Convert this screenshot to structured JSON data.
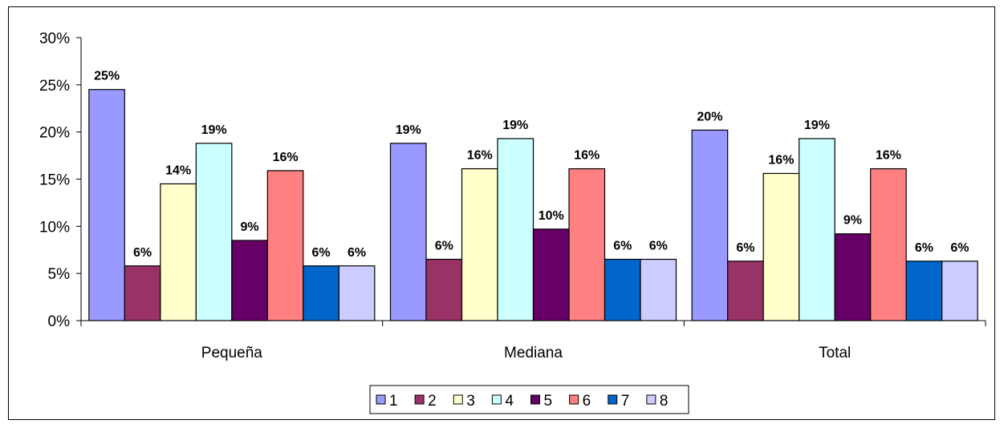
{
  "chart_data": {
    "type": "bar",
    "title": "",
    "xlabel": "",
    "ylabel": "",
    "categories": [
      "Pequeña",
      "Mediana",
      "Total"
    ],
    "ylim": [
      0,
      30
    ],
    "yticks": [
      "0%",
      "5%",
      "10%",
      "15%",
      "20%",
      "25%",
      "30%"
    ],
    "grid": false,
    "legend_position": "bottom",
    "series": [
      {
        "name": "1",
        "color": "#9999ff",
        "values": [
          24.5,
          18.8,
          20.2
        ],
        "labels": [
          "25%",
          "19%",
          "20%"
        ]
      },
      {
        "name": "2",
        "color": "#993366",
        "values": [
          5.8,
          6.5,
          6.3
        ],
        "labels": [
          "6%",
          "6%",
          "6%"
        ]
      },
      {
        "name": "3",
        "color": "#ffffcc",
        "values": [
          14.5,
          16.1,
          15.6
        ],
        "labels": [
          "14%",
          "16%",
          "16%"
        ]
      },
      {
        "name": "4",
        "color": "#ccffff",
        "values": [
          18.8,
          19.3,
          19.3
        ],
        "labels": [
          "19%",
          "19%",
          "19%"
        ]
      },
      {
        "name": "5",
        "color": "#660066",
        "values": [
          8.5,
          9.7,
          9.2
        ],
        "labels": [
          "9%",
          "10%",
          "9%"
        ]
      },
      {
        "name": "6",
        "color": "#ff8080",
        "values": [
          15.9,
          16.1,
          16.1
        ],
        "labels": [
          "16%",
          "16%",
          "16%"
        ]
      },
      {
        "name": "7",
        "color": "#0066cc",
        "values": [
          5.8,
          6.5,
          6.3
        ],
        "labels": [
          "6%",
          "6%",
          "6%"
        ]
      },
      {
        "name": "8",
        "color": "#ccccff",
        "values": [
          5.8,
          6.5,
          6.3
        ],
        "labels": [
          "6%",
          "6%",
          "6%"
        ]
      }
    ]
  }
}
